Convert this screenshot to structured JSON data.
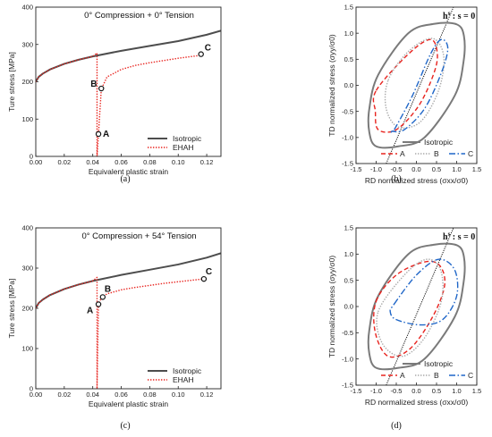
{
  "chart_data": [
    {
      "type": "line",
      "panel": "a",
      "caption": "(a)",
      "title": "0° Compression + 0° Tension",
      "xlabel": "Equivalent plastic strain",
      "ylabel": "Ture stress [MPa]",
      "xlim": [
        0.0,
        0.13
      ],
      "ylim": [
        0,
        400
      ],
      "xticks": [
        "0.00",
        "0.02",
        "0.04",
        "0.06",
        "0.08",
        "0.10",
        "0.12"
      ],
      "yticks": [
        "0",
        "100",
        "200",
        "300",
        "400"
      ],
      "legend_position": "bottom-right",
      "series": [
        {
          "name": "Isotropic",
          "color": "#4d4d4d",
          "style": "solid",
          "x": [
            0,
            0.002,
            0.005,
            0.01,
            0.02,
            0.03,
            0.04,
            0.06,
            0.08,
            0.1,
            0.12,
            0.13
          ],
          "y": [
            200,
            213,
            222,
            233,
            248,
            259,
            268,
            283,
            296,
            309,
            326,
            337
          ]
        },
        {
          "name": "EHAH",
          "color": "#e8231e",
          "style": "dotted",
          "x": [
            0,
            0.002,
            0.005,
            0.01,
            0.02,
            0.03,
            0.04,
            0.043,
            0.043,
            0.044,
            0.046,
            0.05,
            0.06,
            0.07,
            0.08,
            0.09,
            0.1,
            0.11,
            0.118
          ],
          "y": [
            200,
            213,
            222,
            233,
            248,
            259,
            268,
            277,
            0,
            60,
            180,
            213,
            233,
            244,
            251,
            257,
            263,
            268,
            272
          ]
        }
      ],
      "points": [
        {
          "label": "A",
          "x": 0.044,
          "y": 60
        },
        {
          "label": "B",
          "x": 0.046,
          "y": 182
        },
        {
          "label": "C",
          "x": 0.116,
          "y": 274
        }
      ]
    },
    {
      "type": "line",
      "panel": "b",
      "caption": "(b)",
      "xlabel": "RD normalized stress (σxx/σ0)",
      "ylabel": "TD normalized stress (σyy/σ0)",
      "annotation": "h^s : s = 0",
      "xlim": [
        -1.5,
        1.5
      ],
      "ylim": [
        -1.5,
        1.5
      ],
      "xticks": [
        "-1.5",
        "-1.0",
        "-0.5",
        "0.0",
        "0.5",
        "1.0",
        "1.5"
      ],
      "yticks": [
        "-1.5",
        "-1.0",
        "-0.5",
        "0.0",
        "0.5",
        "1.0",
        "1.5"
      ],
      "legend_position": "bottom",
      "series": [
        {
          "name": "Isotropic",
          "color": "#7a7a7a",
          "style": "solid",
          "x": [
            -0.95,
            -0.2,
            0.45,
            1.0,
            1.18,
            1.17,
            0.95,
            0.2,
            -0.45,
            -1.0,
            -1.17,
            -1.17
          ],
          "y": [
            0.2,
            1.0,
            1.18,
            1.17,
            0.95,
            0.45,
            -0.2,
            -1.0,
            -1.17,
            -1.17,
            -0.9,
            -0.45
          ]
        },
        {
          "name": "A",
          "color": "#e8231e",
          "style": "dashed",
          "x": [
            -1.0,
            -0.2,
            0.35,
            0.52,
            0.42,
            0.05,
            -0.5,
            -0.95,
            -1.02
          ],
          "y": [
            -0.1,
            0.6,
            0.88,
            0.6,
            0.2,
            -0.4,
            -0.85,
            -0.85,
            -0.5
          ]
        },
        {
          "name": "B",
          "color": "#a8a8a8",
          "style": "dotted",
          "x": [
            -0.7,
            -0.2,
            0.4,
            0.68,
            0.55,
            0.1,
            -0.45,
            -0.75
          ],
          "y": [
            0.1,
            0.65,
            0.9,
            0.55,
            -0.1,
            -0.7,
            -0.8,
            -0.45
          ]
        },
        {
          "name": "C",
          "color": "#1f66c8",
          "style": "dashdot",
          "x": [
            -0.55,
            -0.1,
            0.35,
            0.62,
            0.78,
            0.6,
            0.2,
            -0.3,
            -0.6
          ],
          "y": [
            -0.85,
            -0.2,
            0.6,
            0.88,
            0.7,
            0.2,
            -0.45,
            -0.85,
            -0.88
          ]
        }
      ],
      "reference_line": {
        "x": [
          -0.75,
          0.92
        ],
        "y": [
          -1.5,
          1.5
        ]
      }
    },
    {
      "type": "line",
      "panel": "c",
      "caption": "(c)",
      "title": "0° Compression + 54° Tension",
      "xlabel": "Equivalent plastic strain",
      "ylabel": "Ture stress [MPa]",
      "xlim": [
        0.0,
        0.13
      ],
      "ylim": [
        0,
        400
      ],
      "xticks": [
        "0.00",
        "0.02",
        "0.04",
        "0.06",
        "0.08",
        "0.10",
        "0.12"
      ],
      "yticks": [
        "0",
        "100",
        "200",
        "300",
        "400"
      ],
      "legend_position": "bottom-right",
      "series": [
        {
          "name": "Isotropic",
          "color": "#4d4d4d",
          "style": "solid",
          "x": [
            0,
            0.002,
            0.005,
            0.01,
            0.02,
            0.03,
            0.04,
            0.06,
            0.08,
            0.1,
            0.12,
            0.13
          ],
          "y": [
            200,
            213,
            222,
            233,
            248,
            259,
            268,
            283,
            296,
            309,
            326,
            337
          ]
        },
        {
          "name": "EHAH",
          "color": "#e8231e",
          "style": "dotted",
          "x": [
            0,
            0.002,
            0.005,
            0.01,
            0.02,
            0.03,
            0.04,
            0.043,
            0.043,
            0.044,
            0.046,
            0.05,
            0.06,
            0.07,
            0.08,
            0.09,
            0.1,
            0.11,
            0.118
          ],
          "y": [
            200,
            213,
            222,
            233,
            248,
            259,
            268,
            277,
            0,
            210,
            226,
            236,
            246,
            252,
            257,
            262,
            266,
            270,
            273
          ]
        }
      ],
      "points": [
        {
          "label": "A",
          "x": 0.044,
          "y": 210
        },
        {
          "label": "B",
          "x": 0.047,
          "y": 228
        },
        {
          "label": "C",
          "x": 0.118,
          "y": 273
        }
      ]
    },
    {
      "type": "line",
      "panel": "d",
      "caption": "(d)",
      "xlabel": "RD normalized stress (σxx/σ0)",
      "ylabel": "TD normalized stress (σyy/σ0)",
      "annotation": "h^s : s = 0",
      "xlim": [
        -1.5,
        1.5
      ],
      "ylim": [
        -1.5,
        1.5
      ],
      "xticks": [
        "-1.5",
        "-1.0",
        "-0.5",
        "0.0",
        "0.5",
        "1.0",
        "1.5"
      ],
      "yticks": [
        "-1.5",
        "-1.0",
        "-0.5",
        "0.0",
        "0.5",
        "1.0",
        "1.5"
      ],
      "legend_position": "bottom",
      "series": [
        {
          "name": "Isotropic",
          "color": "#7a7a7a",
          "style": "solid",
          "x": [
            -0.95,
            -0.2,
            0.45,
            1.0,
            1.18,
            1.17,
            0.95,
            0.2,
            -0.45,
            -1.0,
            -1.17,
            -1.17
          ],
          "y": [
            0.2,
            1.0,
            1.18,
            1.17,
            0.95,
            0.45,
            -0.2,
            -1.0,
            -1.17,
            -1.17,
            -0.9,
            -0.45
          ]
        },
        {
          "name": "A",
          "color": "#e8231e",
          "style": "dashed",
          "x": [
            -1.0,
            -0.5,
            0.2,
            0.58,
            0.7,
            0.4,
            -0.15,
            -0.7,
            -1.02
          ],
          "y": [
            0.1,
            0.6,
            0.85,
            0.78,
            0.4,
            -0.2,
            -0.8,
            -0.95,
            -0.5
          ]
        },
        {
          "name": "B",
          "color": "#a8a8a8",
          "style": "dotted",
          "x": [
            -0.95,
            -0.3,
            0.25,
            0.6,
            0.62,
            0.2,
            -0.35,
            -0.85
          ],
          "y": [
            -0.1,
            0.6,
            0.9,
            0.7,
            0.1,
            -0.6,
            -0.95,
            -0.7
          ]
        },
        {
          "name": "C",
          "color": "#1f66c8",
          "style": "dashdot",
          "x": [
            -0.55,
            0.0,
            0.55,
            0.95,
            1.0,
            0.65,
            0.1,
            -0.5,
            -0.65
          ],
          "y": [
            0.05,
            0.6,
            0.9,
            0.7,
            0.2,
            -0.25,
            -0.35,
            -0.25,
            -0.1
          ]
        }
      ],
      "reference_line": {
        "x": [
          -0.75,
          0.92
        ],
        "y": [
          -1.5,
          1.5
        ]
      }
    }
  ]
}
